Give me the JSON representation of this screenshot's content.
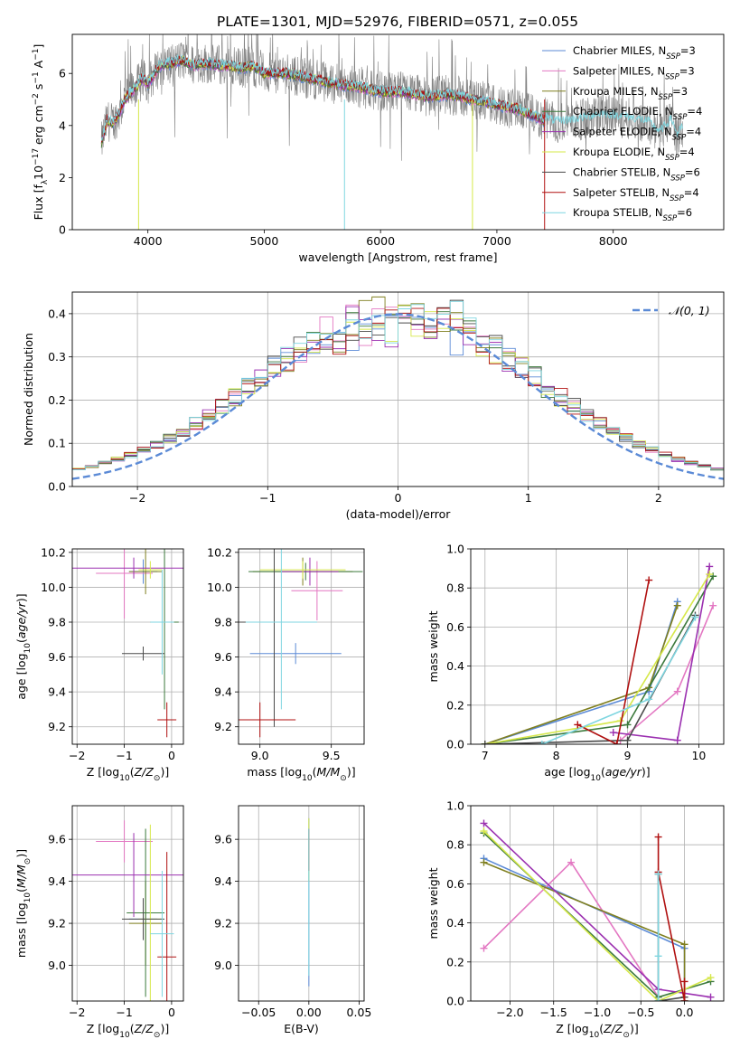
{
  "title": "PLATE=1301, MJD=52976, FIBERID=0571, z=0.055",
  "models": [
    {
      "name": "Chabrier MILES",
      "nssp": "3",
      "color": "#5b8ad6"
    },
    {
      "name": "Salpeter MILES",
      "nssp": "3",
      "color": "#e377c2"
    },
    {
      "name": "Kroupa MILES",
      "nssp": "3",
      "color": "#7f7f1f"
    },
    {
      "name": "Chabrier ELODIE",
      "nssp": "4",
      "color": "#3c7a3c"
    },
    {
      "name": "Salpeter ELODIE",
      "nssp": "4",
      "color": "#9b30b0"
    },
    {
      "name": "Kroupa ELODIE",
      "nssp": "4",
      "color": "#d6e84a"
    },
    {
      "name": "Chabrier STELIB",
      "nssp": "6",
      "color": "#4a4a4a"
    },
    {
      "name": "Salpeter STELIB",
      "nssp": "4",
      "color": "#b01010"
    },
    {
      "name": "Kroupa STELIB",
      "nssp": "6",
      "color": "#7fd6e0"
    }
  ],
  "chart_data": [
    {
      "id": "spectrum",
      "type": "line",
      "xlabel": "wavelength [Angstrom, rest frame]",
      "ylabel": "Flux [f_λ10^-17 erg cm^-2 s^-1 A^-1]",
      "xlim": [
        3350,
        8950
      ],
      "ylim": [
        0,
        7.5
      ],
      "xticks": [
        4000,
        5000,
        6000,
        7000,
        8000
      ],
      "yticks": [
        0,
        2,
        4,
        6
      ],
      "grid": false,
      "legend": "right",
      "x_range_data": [
        3600,
        8600
      ],
      "continuum": {
        "x": [
          3600,
          3650,
          3700,
          3760,
          3800,
          3900,
          3950,
          4000,
          4100,
          4200,
          4300,
          4400,
          4500,
          4600,
          4700,
          4800,
          4900,
          5000,
          5200,
          5400,
          5600,
          5800,
          6000,
          6200,
          6400,
          6600,
          6800,
          7000,
          7200,
          7300,
          7400,
          7410
        ],
        "y": [
          3.3,
          4.2,
          4.1,
          4.5,
          5.0,
          5.5,
          5.8,
          5.6,
          6.3,
          6.4,
          6.5,
          6.3,
          6.4,
          6.3,
          6.3,
          6.2,
          6.3,
          6.0,
          6.0,
          5.8,
          5.6,
          5.5,
          5.3,
          5.3,
          5.1,
          5.2,
          5.0,
          4.8,
          4.6,
          4.4,
          4.2,
          4.2
        ]
      },
      "kroupa_stelib_continuum": {
        "x": [
          7410,
          7500,
          7700,
          7900,
          8100,
          8300,
          8400,
          8500,
          8550,
          8600
        ],
        "y": [
          4.3,
          4.1,
          4.2,
          4.4,
          4.3,
          4.1,
          3.7,
          4.2,
          3.6,
          3.9
        ]
      }
    },
    {
      "id": "residuals",
      "type": "line",
      "xlabel": "(data-model)/error",
      "ylabel": "Normed distribution",
      "xlim": [
        -2.5,
        2.5
      ],
      "ylim": [
        0,
        0.45
      ],
      "xticks": [
        -2,
        -1,
        0,
        1,
        2
      ],
      "yticks": [
        0.0,
        0.1,
        0.2,
        0.3,
        0.4
      ],
      "grid": true,
      "legend": "top-right",
      "normal_label": "𝒩(0, 1)",
      "bin_width": 0.1,
      "bin_start": -2.5
    },
    {
      "id": "age_vs_z",
      "type": "scatter",
      "xlabel": "Z [log10(Z/Z⊙)]",
      "ylabel": "age [log10(age/yr)]",
      "xlim": [
        -2.1,
        0.25
      ],
      "ylim": [
        9.1,
        10.22
      ],
      "xticks": [
        -2,
        -1,
        0
      ],
      "yticks": [
        9.2,
        9.4,
        9.6,
        9.8,
        10.0,
        10.2
      ],
      "points": [
        {
          "m": 0,
          "x": -0.6,
          "y": 10.09,
          "xe": 0.3,
          "ye": 0.07
        },
        {
          "m": 1,
          "x": -1.0,
          "y": 10.08,
          "xe": 0.6,
          "ye": 0.26
        },
        {
          "m": 2,
          "x": -0.55,
          "y": 10.09,
          "xe": 0.35,
          "ye": 0.13
        },
        {
          "m": 3,
          "x": -0.15,
          "y": 9.8,
          "xe": 0.3,
          "ye": 0.5
        },
        {
          "m": 4,
          "x": -0.8,
          "y": 10.11,
          "xe": 1.3,
          "ye": 0.06
        },
        {
          "m": 5,
          "x": -0.45,
          "y": 10.1,
          "xe": 0.25,
          "ye": 0.05
        },
        {
          "m": 6,
          "x": -0.6,
          "y": 9.62,
          "xe": 0.45,
          "ye": 0.04
        },
        {
          "m": 7,
          "x": -0.1,
          "y": 9.24,
          "xe": 0.2,
          "ye": 0.1
        },
        {
          "m": 8,
          "x": -0.2,
          "y": 9.8,
          "xe": 0.25,
          "ye": 0.3
        }
      ]
    },
    {
      "id": "age_vs_mass",
      "type": "scatter",
      "xlabel": "mass [log10(M/M⊙)]",
      "ylabel": "",
      "xlim": [
        8.85,
        9.73
      ],
      "ylim": [
        9.1,
        10.22
      ],
      "xticks": [
        9.0,
        9.5
      ],
      "yticks": [
        9.2,
        9.4,
        9.6,
        9.8,
        10.0,
        10.2
      ],
      "points": [
        {
          "m": 0,
          "x": 9.25,
          "y": 9.62,
          "xe": 0.32,
          "ye": 0.06
        },
        {
          "m": 1,
          "x": 9.4,
          "y": 9.98,
          "xe": 0.18,
          "ye": 0.17
        },
        {
          "m": 2,
          "x": 9.3,
          "y": 10.09,
          "xe": 0.35,
          "ye": 0.08
        },
        {
          "m": 3,
          "x": 9.32,
          "y": 10.09,
          "xe": 0.4,
          "ye": 0.05
        },
        {
          "m": 4,
          "x": 9.35,
          "y": 10.09,
          "xe": 0.2,
          "ye": 0.08
        },
        {
          "m": 5,
          "x": 9.3,
          "y": 10.1,
          "xe": 0.3,
          "ye": 0.05
        },
        {
          "m": 6,
          "x": 9.1,
          "y": 9.8,
          "xe": 0.25,
          "ye": 0.6
        },
        {
          "m": 7,
          "x": 9.0,
          "y": 9.24,
          "xe": 0.25,
          "ye": 0.1
        },
        {
          "m": 8,
          "x": 9.15,
          "y": 9.8,
          "xe": 0.25,
          "ye": 0.5
        }
      ]
    },
    {
      "id": "weight_vs_age",
      "type": "line",
      "xlabel": "age [log10(age/yr)]",
      "ylabel": "mass weight",
      "xlim": [
        6.8,
        10.35
      ],
      "ylim": [
        0,
        1.0
      ],
      "xticks": [
        7,
        8,
        9,
        10
      ],
      "yticks": [
        0.0,
        0.2,
        0.4,
        0.6,
        0.8,
        1.0
      ],
      "grid": true,
      "series": [
        {
          "m": 0,
          "x": [
            7.0,
            9.3,
            9.7
          ],
          "y": [
            0.0,
            0.27,
            0.73
          ]
        },
        {
          "m": 1,
          "x": [
            8.9,
            9.7,
            10.2
          ],
          "y": [
            0.02,
            0.27,
            0.71
          ]
        },
        {
          "m": 2,
          "x": [
            7.0,
            9.3,
            9.7
          ],
          "y": [
            0.0,
            0.29,
            0.71
          ]
        },
        {
          "m": 3,
          "x": [
            7.0,
            9.0,
            10.2
          ],
          "y": [
            0.0,
            0.1,
            0.86
          ]
        },
        {
          "m": 4,
          "x": [
            8.8,
            9.7,
            10.15
          ],
          "y": [
            0.06,
            0.02,
            0.91
          ]
        },
        {
          "m": 5,
          "x": [
            7.0,
            8.9,
            10.15
          ],
          "y": [
            0.0,
            0.12,
            0.87
          ]
        },
        {
          "m": 6,
          "x": [
            7.0,
            9.0,
            9.95
          ],
          "y": [
            0.0,
            0.02,
            0.66
          ]
        },
        {
          "m": 7,
          "x": [
            8.3,
            8.85,
            9.3
          ],
          "y": [
            0.1,
            0.0,
            0.84
          ]
        },
        {
          "m": 8,
          "x": [
            7.8,
            9.3,
            9.95
          ],
          "y": [
            0.0,
            0.23,
            0.65
          ]
        }
      ]
    },
    {
      "id": "mass_vs_z",
      "type": "scatter",
      "xlabel": "Z [log10(Z/Z⊙)]",
      "ylabel": "mass [log10(M/M⊙)]",
      "xlim": [
        -2.1,
        0.25
      ],
      "ylim": [
        8.83,
        9.76
      ],
      "xticks": [
        -2,
        -1,
        0
      ],
      "yticks": [
        9.0,
        9.2,
        9.4,
        9.6
      ],
      "points": [
        {
          "m": 0,
          "x": -0.6,
          "y": 9.22,
          "xe": 0.3,
          "ye": 0.04
        },
        {
          "m": 1,
          "x": -1.0,
          "y": 9.59,
          "xe": 0.6,
          "ye": 0.1
        },
        {
          "m": 2,
          "x": -0.55,
          "y": 9.2,
          "xe": 0.35,
          "ye": 0.2
        },
        {
          "m": 3,
          "x": -0.55,
          "y": 9.25,
          "xe": 0.4,
          "ye": 0.4
        },
        {
          "m": 4,
          "x": -0.8,
          "y": 9.43,
          "xe": 1.3,
          "ye": 0.2
        },
        {
          "m": 5,
          "x": -0.45,
          "y": 9.22,
          "xe": 0.25,
          "ye": 0.45
        },
        {
          "m": 6,
          "x": -0.6,
          "y": 9.22,
          "xe": 0.45,
          "ye": 0.1
        },
        {
          "m": 7,
          "x": -0.1,
          "y": 9.04,
          "xe": 0.2,
          "ye": 0.5
        },
        {
          "m": 8,
          "x": -0.2,
          "y": 9.15,
          "xe": 0.25,
          "ye": 0.3
        }
      ]
    },
    {
      "id": "mass_vs_ebv",
      "type": "scatter",
      "xlabel": "E(B-V)",
      "ylabel": "",
      "xlim": [
        -0.07,
        0.055
      ],
      "ylim": [
        8.83,
        9.76
      ],
      "xticks": [
        -0.05,
        0.0,
        0.05
      ],
      "xticklabels": [
        "−0.05",
        "0.00",
        "0.05"
      ],
      "yticks": [
        9.0,
        9.2,
        9.4,
        9.6
      ],
      "points": [
        {
          "m": 0,
          "x": 0.0,
          "y": 9.3,
          "xe": 0.0,
          "ye": 0.4
        },
        {
          "m": 5,
          "x": 0.0,
          "y": 9.55,
          "xe": 0.0,
          "ye": 0.15
        },
        {
          "m": 7,
          "x": 0.0,
          "y": 9.55,
          "xe": 0.0,
          "ye": 0.1
        },
        {
          "m": 8,
          "x": 0.0,
          "y": 9.3,
          "xe": 0.0,
          "ye": 0.35
        }
      ]
    },
    {
      "id": "weight_vs_z",
      "type": "line",
      "xlabel": "Z [log10(Z/Z⊙)]",
      "ylabel": "mass weight",
      "xlim": [
        -2.45,
        0.45
      ],
      "ylim": [
        0,
        1.0
      ],
      "xticks": [
        -2.0,
        -1.5,
        -1.0,
        -0.5,
        0.0
      ],
      "yticks": [
        0.0,
        0.2,
        0.4,
        0.6,
        0.8,
        1.0
      ],
      "grid": true,
      "series": [
        {
          "m": 0,
          "x": [
            -2.3,
            0.0,
            0.0
          ],
          "y": [
            0.73,
            0.27,
            0.0
          ]
        },
        {
          "m": 1,
          "x": [
            -2.3,
            -1.3,
            -0.3
          ],
          "y": [
            0.27,
            0.71,
            0.02
          ]
        },
        {
          "m": 2,
          "x": [
            -2.3,
            0.0,
            0.0
          ],
          "y": [
            0.71,
            0.29,
            0.0
          ]
        },
        {
          "m": 3,
          "x": [
            -2.3,
            -0.3,
            0.3
          ],
          "y": [
            0.86,
            0.02,
            0.1
          ]
        },
        {
          "m": 4,
          "x": [
            -2.3,
            -0.3,
            0.3
          ],
          "y": [
            0.91,
            0.06,
            0.02
          ]
        },
        {
          "m": 5,
          "x": [
            -2.3,
            -0.3,
            0.3
          ],
          "y": [
            0.87,
            0.0,
            0.12
          ]
        },
        {
          "m": 6,
          "x": [
            -0.3,
            -0.3,
            0.0
          ],
          "y": [
            0.65,
            0.0,
            0.02
          ]
        },
        {
          "m": 7,
          "x": [
            -0.3,
            -0.3,
            0.0,
            0.0
          ],
          "y": [
            0.84,
            0.66,
            0.0,
            0.1
          ]
        },
        {
          "m": 8,
          "x": [
            -0.3,
            -0.3,
            -0.3
          ],
          "y": [
            0.65,
            0.23,
            0.0
          ]
        }
      ]
    }
  ]
}
